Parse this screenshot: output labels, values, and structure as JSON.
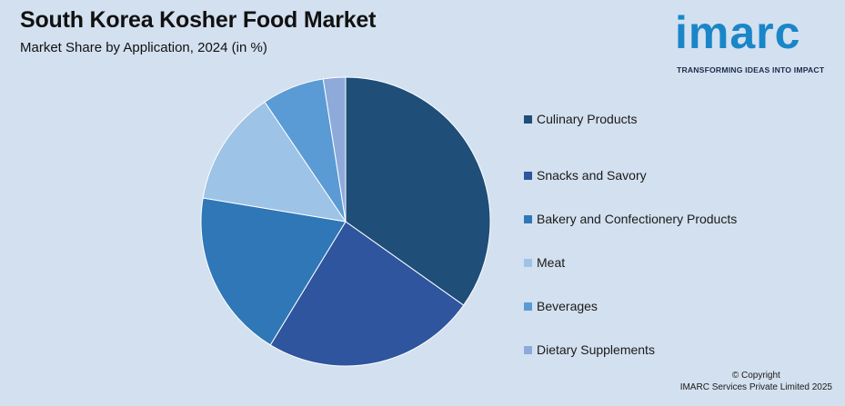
{
  "header": {
    "title": "South Korea Kosher Food Market",
    "subtitle": "Market Share by Application, 2024 (in %)"
  },
  "logo": {
    "word": "imarc",
    "tagline": "TRANSFORMING IDEAS INTO IMPACT",
    "color": "#1a86c8"
  },
  "footer": {
    "line1": "© Copyright",
    "line2": "IMARC Services Private Limited 2025"
  },
  "chart_data": {
    "type": "pie",
    "title": "South Korea Kosher Food Market",
    "subtitle": "Market Share by Application, 2024 (in %)",
    "legend_position": "right",
    "categories": [
      "Culinary Products",
      "Snacks and Savory",
      "Bakery and Confectionery Products",
      "Meat",
      "Beverages",
      "Dietary Supplements"
    ],
    "values": [
      35,
      24,
      19,
      13,
      7,
      2.5
    ],
    "colors": [
      "#1f4e79",
      "#2e559e",
      "#2f77b7",
      "#9dc3e6",
      "#5b9bd5",
      "#8eaadb"
    ],
    "start_angle_deg": 0,
    "direction": "clockwise"
  }
}
